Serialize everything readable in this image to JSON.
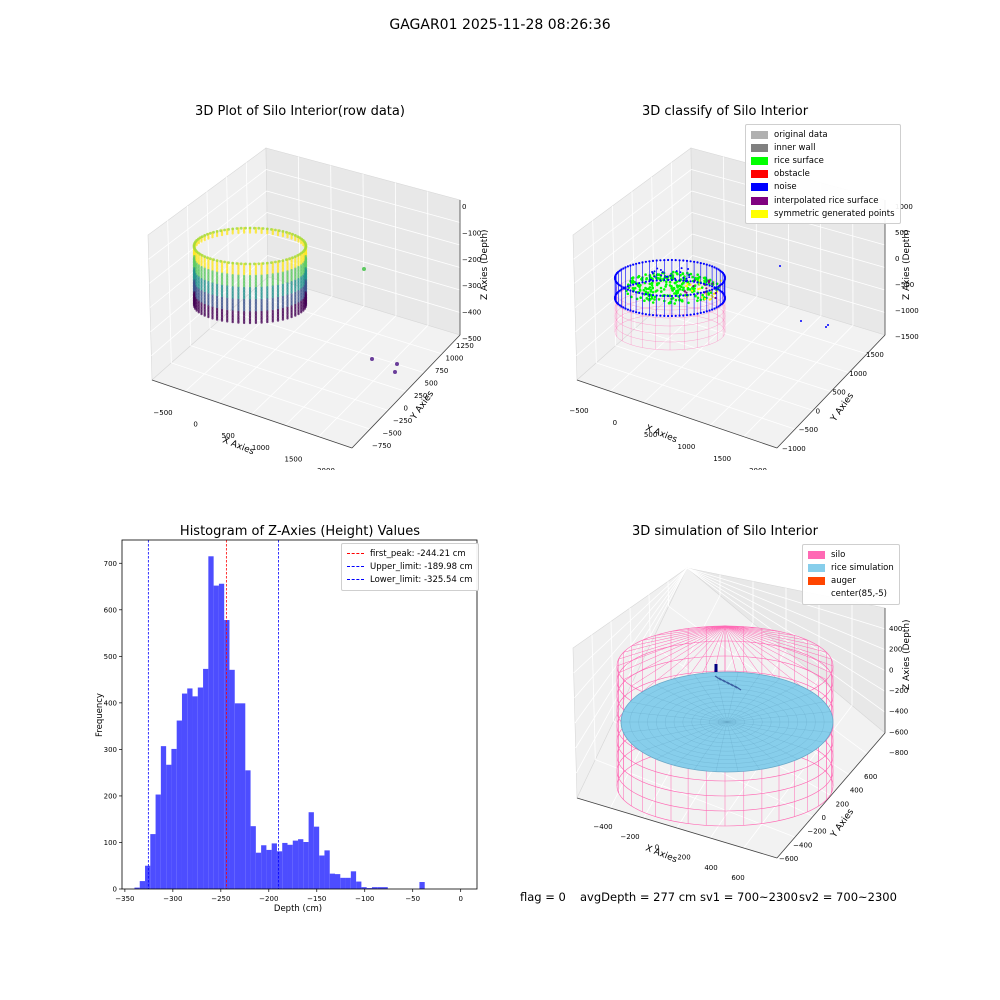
{
  "figure": {
    "title": "GAGAR01 2025-11-28 08:26:36"
  },
  "colors": {
    "original": "#b0b0b0",
    "inner_wall": "#808080",
    "rice_surface": "#00ff00",
    "obstacle": "#ff0000",
    "noise": "#0000ff",
    "interpolated": "#800080",
    "symmetric": "#ffff00",
    "silo": "#ff69b4",
    "rice_sim": "#87ceeb",
    "auger": "#ff4500",
    "hist_bar": "#4d4dff"
  },
  "panel1": {
    "title": "3D Plot of Silo Interior(row data)",
    "xlabel": "X Axies",
    "ylabel": "Y Axies",
    "zlabel": "Z Axies (Depth)",
    "xticks": [
      "−500",
      "0",
      "500",
      "1000",
      "1500",
      "2000"
    ],
    "yticks": [
      "−750",
      "−500",
      "−250",
      "0",
      "250",
      "500",
      "750",
      "1000",
      "1250"
    ],
    "zticks": [
      "0",
      "−100",
      "−200",
      "−300",
      "−400",
      "−500"
    ]
  },
  "panel2": {
    "title": "3D classify of Silo Interior",
    "xlabel": "X Axies",
    "ylabel": "Y Axies",
    "zlabel": "Z Axies (Depth)",
    "xticks": [
      "−500",
      "0",
      "500",
      "1000",
      "1500",
      "2000"
    ],
    "yticks": [
      "−1000",
      "−500",
      "0",
      "500",
      "1000",
      "1500"
    ],
    "zticks": [
      "1000",
      "500",
      "0",
      "−500",
      "−1000",
      "−1500"
    ],
    "legend": [
      {
        "label": "original data",
        "color": "#b0b0b0"
      },
      {
        "label": "inner wall",
        "color": "#808080"
      },
      {
        "label": "rice surface",
        "color": "#00ff00"
      },
      {
        "label": "obstacle",
        "color": "#ff0000"
      },
      {
        "label": "noise",
        "color": "#0000ff"
      },
      {
        "label": "interpolated rice surface",
        "color": "#800080"
      },
      {
        "label": "symmetric generated points",
        "color": "#ffff00"
      }
    ]
  },
  "panel4": {
    "title": "3D simulation of Silo Interior",
    "xlabel": "X Axies",
    "ylabel": "Y Axies",
    "zlabel": "Z Axies (Depth)",
    "xticks": [
      "−400",
      "−200",
      "0",
      "200",
      "400",
      "600"
    ],
    "yticks": [
      "−600",
      "−400",
      "−200",
      "0",
      "200",
      "400",
      "600"
    ],
    "zticks": [
      "400",
      "200",
      "0",
      "−200",
      "−400",
      "−600",
      "−800"
    ],
    "legend": [
      {
        "label": "silo",
        "color": "#ff69b4"
      },
      {
        "label": "rice simulation",
        "color": "#87ceeb"
      },
      {
        "label": "auger",
        "color": "#ff4500"
      },
      {
        "label": "center(85,-5)",
        "color": ""
      }
    ]
  },
  "footer": {
    "flag": "flag = 0",
    "avg": "avgDepth = 277 cm",
    "sv1": "sv1 = 700~2300",
    "sv2": "sv2 = 700~2300"
  },
  "chart_data": [
    {
      "type": "bar",
      "title": "Histogram of Z-Axies (Height) Values",
      "xlabel": "Depth (cm)",
      "ylabel": "Frequency",
      "xlim": [
        -353,
        17
      ],
      "ylim": [
        0,
        750
      ],
      "xticks": [
        -350,
        -300,
        -250,
        -200,
        -150,
        -100,
        -50,
        0
      ],
      "yticks": [
        0,
        100,
        200,
        300,
        400,
        500,
        600,
        700
      ],
      "bin_edges_start": -340,
      "bin_width": 5.5,
      "values": [
        3,
        17,
        50,
        118,
        203,
        307,
        267,
        301,
        362,
        420,
        431,
        414,
        433,
        473,
        715,
        652,
        656,
        578,
        471,
        399,
        399,
        255,
        135,
        78,
        94,
        84,
        98,
        81,
        99,
        95,
        104,
        107,
        101,
        165,
        134,
        72,
        83,
        33,
        32,
        24,
        24,
        38,
        16,
        4,
        2,
        4,
        4,
        4,
        0,
        0,
        0,
        0,
        0,
        0,
        15
      ],
      "legend_position": "top-right",
      "lines": [
        {
          "label": "first_peak: -244.21 cm",
          "x": -244.21,
          "color": "#ff0000"
        },
        {
          "label": "Upper_limit: -189.98 cm",
          "x": -189.98,
          "color": "#0000ff"
        },
        {
          "label": "Lower_limit: -325.54 cm",
          "x": -325.54,
          "color": "#0000ff"
        }
      ]
    }
  ]
}
